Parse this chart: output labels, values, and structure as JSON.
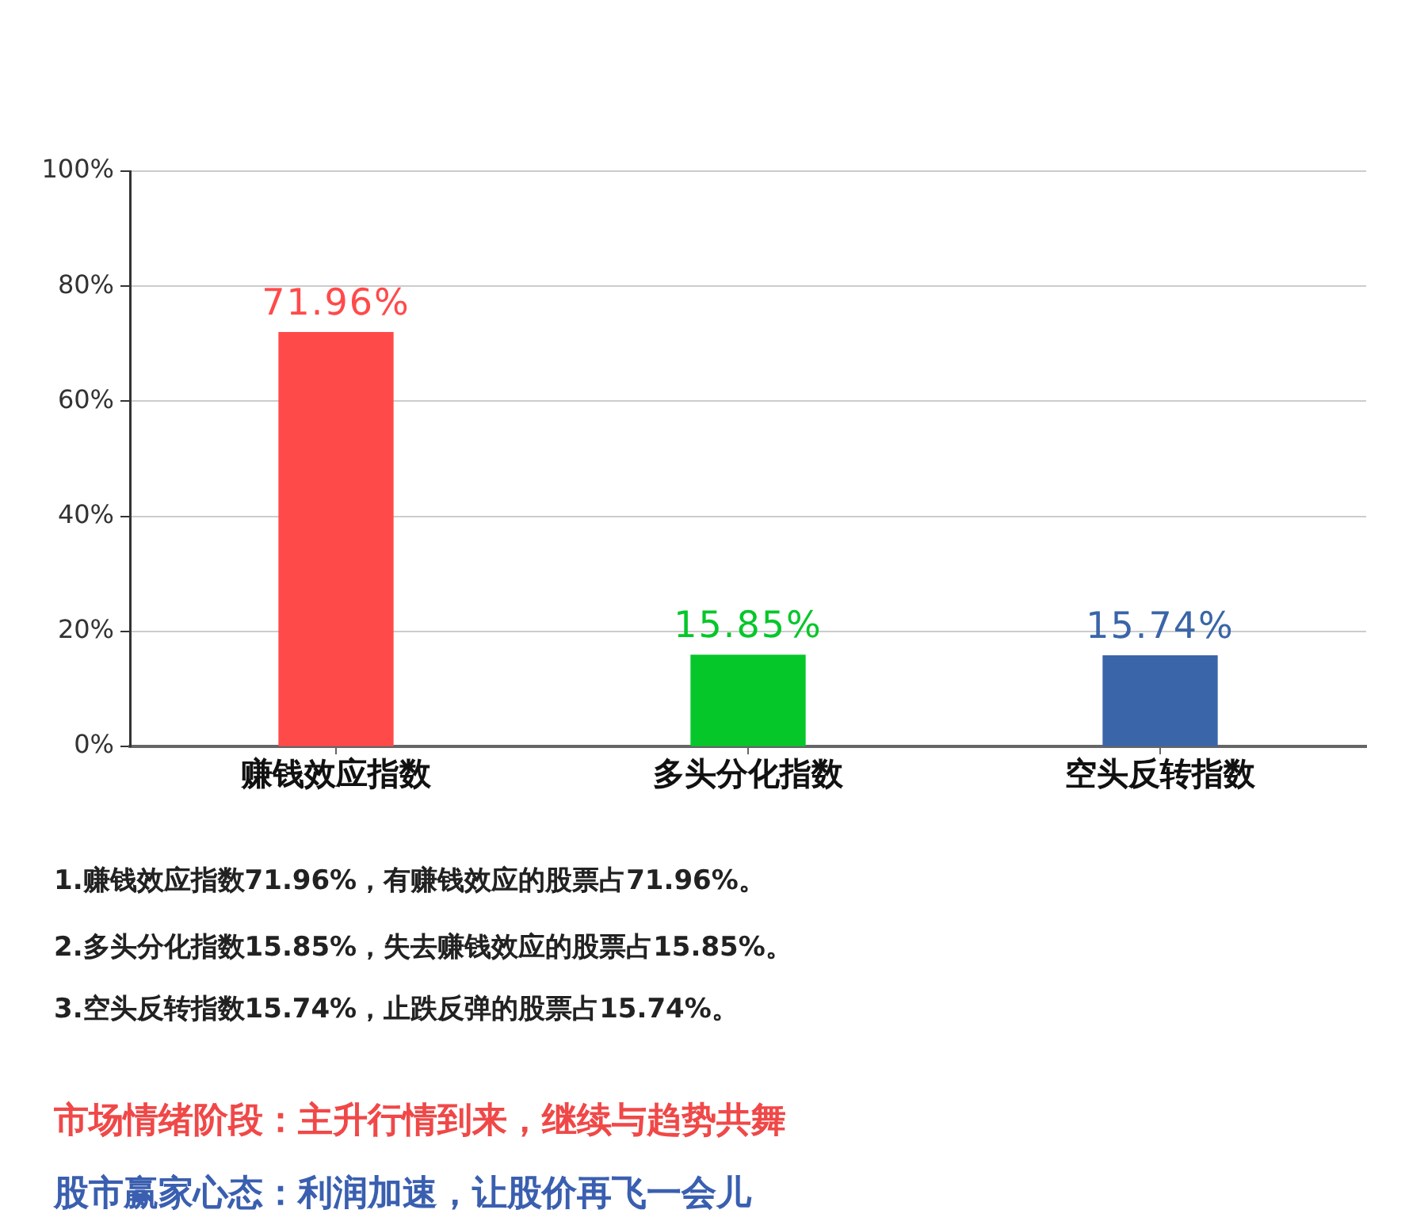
{
  "chart_data": {
    "type": "bar",
    "categories": [
      "赚钱效应指数",
      "多头分化指数",
      "空头反转指数"
    ],
    "values": [
      71.96,
      15.85,
      15.74
    ],
    "colors": [
      "#ff4a4a",
      "#05c72a",
      "#3a65a8"
    ],
    "value_labels": [
      "71.96%",
      "15.85%",
      "15.74%"
    ],
    "ylim": [
      0,
      100
    ],
    "yticks": [
      {
        "value": 0,
        "label": "0%"
      },
      {
        "value": 20,
        "label": "20%"
      },
      {
        "value": 40,
        "label": "40%"
      },
      {
        "value": 60,
        "label": "60%"
      },
      {
        "value": 80,
        "label": "80%"
      },
      {
        "value": 100,
        "label": "100%"
      }
    ],
    "grid": "y",
    "annotations": [
      "1.赚钱效应指数71.96%，有赚钱效应的股票占71.96%。",
      "2.多头分化指数15.85%，失去赚钱效应的股票占15.85%。",
      "3.空头反转指数15.74%，止跌反弹的股票占15.74%。",
      "市场情绪阶段：主升行情到来，继续与趋势共舞",
      "股市赢家心态：利润加速，让股价再飞一会儿"
    ]
  }
}
